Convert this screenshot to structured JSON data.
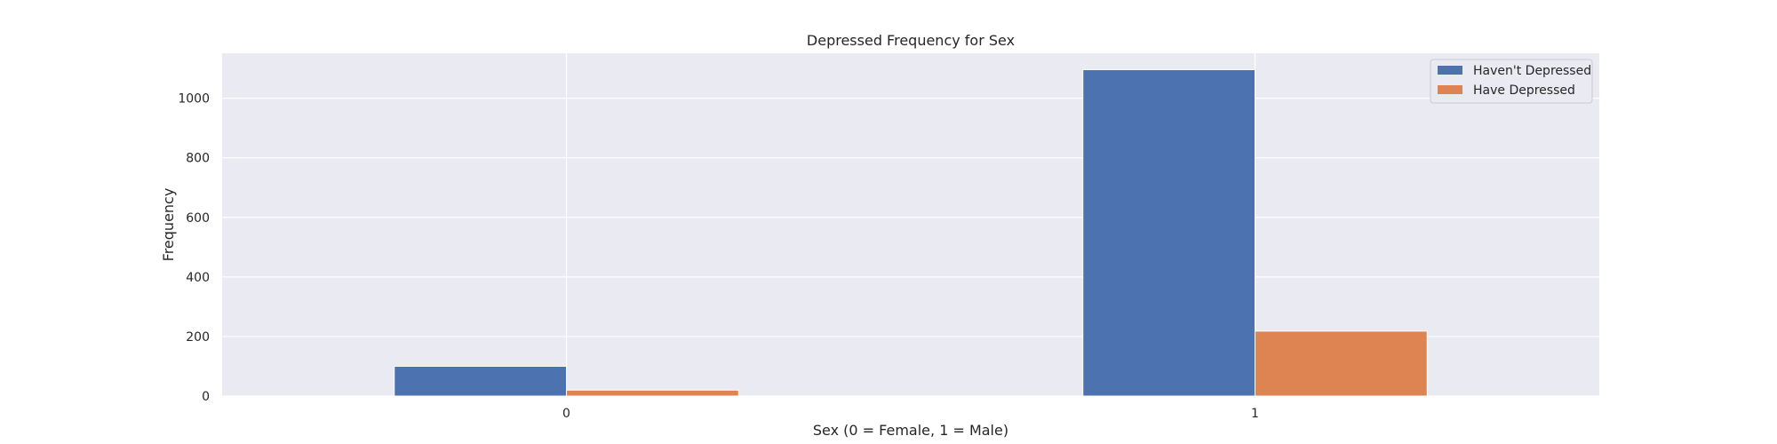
{
  "chart_data": {
    "type": "bar",
    "title": "Depressed Frequency for Sex",
    "xlabel": "Sex (0 = Female, 1 = Male)",
    "ylabel": "Frequency",
    "categories": [
      "0",
      "1"
    ],
    "series": [
      {
        "name": "Haven't Depressed",
        "values": [
          100,
          1096
        ],
        "color": "#4c72b0"
      },
      {
        "name": "Have Depressed",
        "values": [
          20,
          218
        ],
        "color": "#dd8452"
      }
    ],
    "ylim": [
      0,
      1151
    ],
    "yticks": [
      0,
      200,
      400,
      600,
      800,
      1000
    ],
    "grid": true,
    "legend": "top-right",
    "background": "#eaeaf2",
    "grid_color": "#ffffff"
  }
}
